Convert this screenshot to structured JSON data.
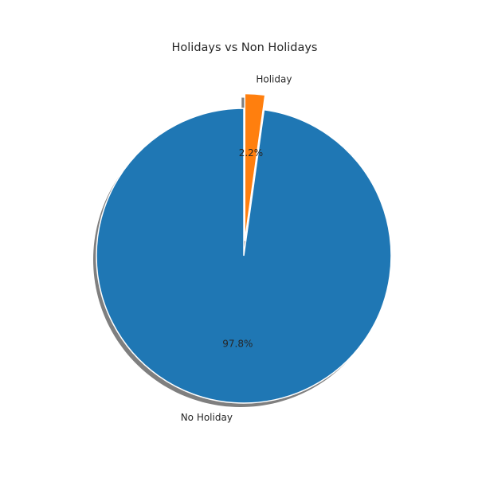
{
  "chart_data": {
    "type": "pie",
    "title": "Holidays vs Non Holidays",
    "labels": [
      "No Holiday",
      "Holiday"
    ],
    "values": [
      97.8,
      2.2
    ],
    "percent_labels": [
      "97.8%",
      "2.2%"
    ],
    "colors": [
      "#1f77b4",
      "#ff7f0e"
    ],
    "explode": [
      0,
      0.1
    ],
    "shadow": true,
    "start_angle_deg": 90,
    "direction": "counterclockwise"
  }
}
